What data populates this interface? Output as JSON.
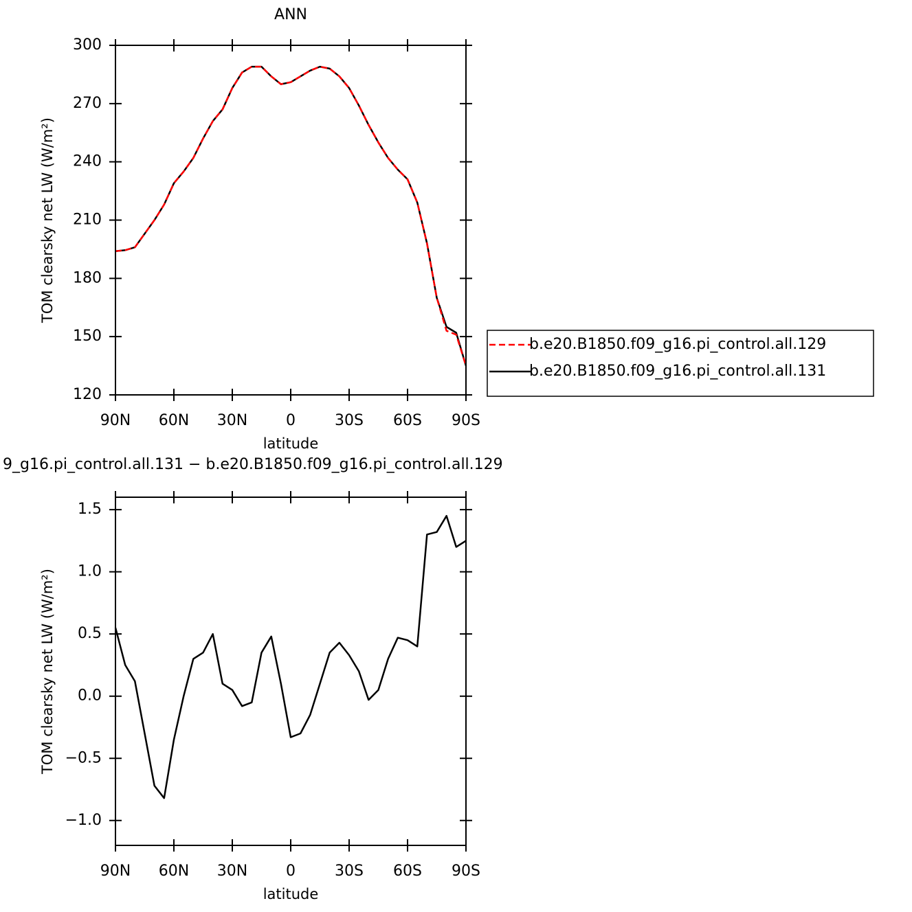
{
  "chart_data": [
    {
      "type": "line",
      "title": "ANN",
      "xlabel": "latitude",
      "ylabel": "TOM clearsky net LW (W/m²)",
      "x": [
        90,
        85,
        80,
        75,
        70,
        65,
        60,
        55,
        50,
        45,
        40,
        35,
        30,
        25,
        20,
        15,
        10,
        5,
        0,
        -5,
        -10,
        -15,
        -20,
        -25,
        -30,
        -35,
        -40,
        -45,
        -50,
        -55,
        -60,
        -65,
        -70,
        -75,
        -80,
        -85,
        -90
      ],
      "series": [
        {
          "name": "b.e20.B1850.f09_g16.pi_control.all.129",
          "color": "#ff0000",
          "dash": true,
          "values": [
            194,
            194.5,
            196,
            203,
            210,
            218,
            229,
            235,
            242,
            252,
            261,
            267,
            278,
            286,
            289,
            289,
            284,
            280,
            281,
            284,
            287,
            289,
            288,
            284,
            278,
            269,
            259,
            250,
            242,
            236,
            231,
            219,
            198,
            170,
            153,
            151,
            135
          ]
        },
        {
          "name": "b.e20.B1850.f09_g16.pi_control.all.131",
          "color": "#000000",
          "dash": false,
          "values": [
            194,
            194.5,
            196,
            203,
            210,
            218,
            229,
            235,
            242,
            252,
            261,
            267,
            278,
            286,
            289,
            289,
            284,
            280,
            281,
            284,
            287,
            289,
            288,
            284,
            278,
            269,
            259,
            250,
            242,
            236,
            231,
            219,
            198,
            170,
            155,
            152,
            135
          ]
        }
      ],
      "xlim": [
        90,
        -90
      ],
      "xticks": [
        {
          "value": 90,
          "label": "90N"
        },
        {
          "value": 60,
          "label": "60N"
        },
        {
          "value": 30,
          "label": "30N"
        },
        0,
        {
          "value": -30,
          "label": "30S"
        },
        {
          "value": -60,
          "label": "60S"
        },
        {
          "value": -90,
          "label": "90S"
        }
      ],
      "ylim": [
        120,
        300
      ],
      "yticks": [
        120,
        150,
        180,
        210,
        240,
        270,
        300
      ],
      "legend": "right"
    },
    {
      "type": "line",
      "title": "9_g16.pi_control.all.131 − b.e20.B1850.f09_g16.pi_control.all.129",
      "xlabel": "latitude",
      "ylabel": "TOM clearsky net LW (W/m²)",
      "x": [
        90,
        85,
        80,
        75,
        70,
        65,
        60,
        55,
        50,
        45,
        40,
        35,
        30,
        25,
        20,
        15,
        10,
        5,
        0,
        -5,
        -10,
        -15,
        -20,
        -25,
        -30,
        -35,
        -40,
        -45,
        -50,
        -55,
        -60,
        -65,
        -70,
        -75,
        -80,
        -85,
        -90
      ],
      "values": [
        0.55,
        0.25,
        0.12,
        -0.3,
        -0.72,
        -0.82,
        -0.35,
        0.0,
        0.3,
        0.35,
        0.5,
        0.1,
        0.05,
        -0.08,
        -0.05,
        0.35,
        0.48,
        0.1,
        -0.33,
        -0.3,
        -0.15,
        0.1,
        0.35,
        0.43,
        0.33,
        0.2,
        -0.03,
        0.05,
        0.3,
        0.47,
        0.45,
        0.4,
        1.3,
        1.32,
        1.45,
        1.2,
        1.25
      ],
      "color": "#000000",
      "xlim": [
        90,
        -90
      ],
      "xticks": [
        {
          "value": 90,
          "label": "90N"
        },
        {
          "value": 60,
          "label": "60N"
        },
        {
          "value": 30,
          "label": "30N"
        },
        0,
        {
          "value": -30,
          "label": "30S"
        },
        {
          "value": -60,
          "label": "60S"
        },
        {
          "value": -90,
          "label": "90S"
        }
      ],
      "ylim": [
        -1.2,
        1.6
      ],
      "yticks": [
        {
          "value": -1,
          "label": "−1.0"
        },
        {
          "value": -0.5,
          "label": "−0.5"
        },
        {
          "value": 0,
          "label": "0.0"
        },
        0.5,
        {
          "value": 1,
          "label": "1.0"
        },
        1.5
      ]
    }
  ]
}
